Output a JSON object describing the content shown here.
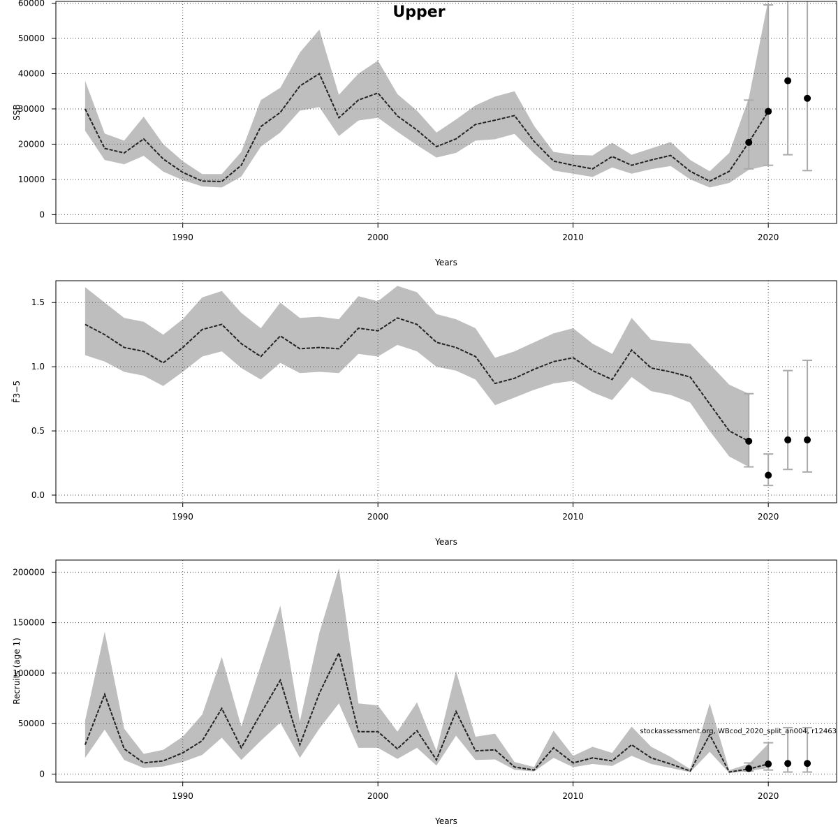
{
  "figure": {
    "title": "Upper",
    "watermark": "stockassessment.org, WBcod_2020_split_an004, r12463",
    "band_color": "#bebebe",
    "line_color": "#222222",
    "grid_color": "#555555",
    "errorbar_color": "#aaaaaa",
    "point_color": "#000000"
  },
  "chart_data": [
    {
      "type": "line",
      "panel": "ssb",
      "ylabel": "SSB",
      "xlabel": "Years",
      "grid": true,
      "xlim": [
        1983.5,
        2023.5
      ],
      "ylim": [
        -2500,
        60500
      ],
      "xticks": [
        1990,
        2000,
        2010,
        2020
      ],
      "yticks": [
        0,
        10000,
        20000,
        30000,
        40000,
        50000,
        60000
      ],
      "ytick_labels": [
        "0",
        "10000",
        "20000",
        "30000",
        "40000",
        "50000",
        "60000"
      ],
      "x": [
        1985,
        1986,
        1987,
        1988,
        1989,
        1990,
        1991,
        1992,
        1993,
        1994,
        1995,
        1996,
        1997,
        1998,
        1999,
        2000,
        2001,
        2002,
        2003,
        2004,
        2005,
        2006,
        2007,
        2008,
        2009,
        2010,
        2011,
        2012,
        2013,
        2014,
        2015,
        2016,
        2017,
        2018,
        2019,
        2020
      ],
      "estimate": [
        30000,
        18800,
        17500,
        21500,
        15800,
        12000,
        9500,
        9400,
        14000,
        25000,
        29000,
        36500,
        40000,
        27500,
        32500,
        34500,
        28000,
        24000,
        19300,
        21500,
        25600,
        26800,
        28100,
        20800,
        15200,
        14000,
        13000,
        16500,
        14000,
        15500,
        16800,
        12300,
        9500,
        12300,
        20500,
        29300
      ],
      "lower": [
        23800,
        15500,
        14300,
        16700,
        12200,
        9800,
        8000,
        7700,
        10800,
        19300,
        23300,
        29500,
        30500,
        22300,
        26700,
        27500,
        23500,
        19700,
        16200,
        17500,
        21000,
        21400,
        22900,
        17300,
        12500,
        11600,
        10700,
        13400,
        11600,
        12900,
        13800,
        10000,
        7700,
        9000,
        12700,
        14000
      ],
      "upper": [
        38000,
        23000,
        21000,
        27800,
        20000,
        15200,
        11500,
        11500,
        17800,
        32500,
        36000,
        46000,
        52500,
        34000,
        40000,
        43700,
        34200,
        29500,
        23300,
        27000,
        31000,
        33500,
        35000,
        25200,
        17800,
        17000,
        16800,
        20400,
        17000,
        18800,
        20600,
        15500,
        12300,
        17500,
        33000,
        61000
      ],
      "points": [
        {
          "x": 2019,
          "y": 20500,
          "lo": 13000,
          "hi": 32500
        },
        {
          "x": 2020,
          "y": 29300,
          "lo": 14000,
          "hi": 59500
        },
        {
          "x": 2021,
          "y": 38000,
          "lo": 17000,
          "hi": 65000
        },
        {
          "x": 2022,
          "y": 33000,
          "lo": 12500,
          "hi": 65000
        }
      ]
    },
    {
      "type": "line",
      "panel": "f",
      "ylabel": "F̄3−5",
      "xlabel": "Years",
      "grid": true,
      "xlim": [
        1983.5,
        2023.5
      ],
      "ylim": [
        -0.06,
        1.67
      ],
      "xticks": [
        1990,
        2000,
        2010,
        2020
      ],
      "yticks": [
        0.0,
        0.5,
        1.0,
        1.5
      ],
      "ytick_labels": [
        "0.0",
        "0.5",
        "1.0",
        "1.5"
      ],
      "x": [
        1985,
        1986,
        1987,
        1988,
        1989,
        1990,
        1991,
        1992,
        1993,
        1994,
        1995,
        1996,
        1997,
        1998,
        1999,
        2000,
        2001,
        2002,
        2003,
        2004,
        2005,
        2006,
        2007,
        2008,
        2009,
        2010,
        2011,
        2012,
        2013,
        2014,
        2015,
        2016,
        2017,
        2018,
        2019
      ],
      "estimate": [
        1.33,
        1.25,
        1.15,
        1.12,
        1.03,
        1.15,
        1.29,
        1.33,
        1.18,
        1.08,
        1.24,
        1.14,
        1.15,
        1.14,
        1.3,
        1.28,
        1.38,
        1.33,
        1.19,
        1.15,
        1.08,
        0.87,
        0.91,
        0.98,
        1.04,
        1.07,
        0.97,
        0.9,
        1.13,
        0.99,
        0.96,
        0.92,
        0.71,
        0.5,
        0.42
      ],
      "lower": [
        1.09,
        1.04,
        0.96,
        0.93,
        0.85,
        0.96,
        1.08,
        1.12,
        0.99,
        0.9,
        1.03,
        0.95,
        0.96,
        0.95,
        1.1,
        1.08,
        1.17,
        1.12,
        1.0,
        0.97,
        0.9,
        0.7,
        0.76,
        0.82,
        0.87,
        0.89,
        0.8,
        0.74,
        0.92,
        0.81,
        0.78,
        0.72,
        0.5,
        0.3,
        0.22
      ],
      "upper": [
        1.62,
        1.5,
        1.38,
        1.35,
        1.25,
        1.37,
        1.54,
        1.59,
        1.42,
        1.3,
        1.5,
        1.38,
        1.39,
        1.37,
        1.55,
        1.51,
        1.63,
        1.58,
        1.41,
        1.37,
        1.3,
        1.07,
        1.12,
        1.19,
        1.26,
        1.3,
        1.18,
        1.1,
        1.38,
        1.21,
        1.19,
        1.18,
        1.02,
        0.86,
        0.79
      ],
      "points": [
        {
          "x": 2019,
          "y": 0.42,
          "lo": 0.22,
          "hi": 0.79
        },
        {
          "x": 2020,
          "y": 0.155,
          "lo": 0.075,
          "hi": 0.32
        },
        {
          "x": 2021,
          "y": 0.43,
          "lo": 0.2,
          "hi": 0.97
        },
        {
          "x": 2022,
          "y": 0.43,
          "lo": 0.18,
          "hi": 1.05
        }
      ]
    },
    {
      "type": "line",
      "panel": "rec",
      "ylabel": "Recruits (age 1)",
      "xlabel": "Years",
      "grid": true,
      "xlim": [
        1983.5,
        2023.5
      ],
      "ylim": [
        -8000,
        212000
      ],
      "xticks": [
        1990,
        2000,
        2010,
        2020
      ],
      "yticks": [
        0,
        50000,
        100000,
        150000,
        200000
      ],
      "ytick_labels": [
        "0",
        "50000",
        "100000",
        "150000",
        "200000"
      ],
      "x": [
        1985,
        1986,
        1987,
        1988,
        1989,
        1990,
        1991,
        1992,
        1993,
        1994,
        1995,
        1996,
        1997,
        1998,
        1999,
        2000,
        2001,
        2002,
        2003,
        2004,
        2005,
        2006,
        2007,
        2008,
        2009,
        2010,
        2011,
        2012,
        2013,
        2014,
        2015,
        2016,
        2017,
        2018,
        2019,
        2020
      ],
      "estimate": [
        29000,
        79000,
        25000,
        11000,
        13000,
        21000,
        33000,
        65000,
        26000,
        60000,
        93000,
        29000,
        80000,
        120000,
        42000,
        42000,
        25000,
        43000,
        14000,
        62000,
        23000,
        24000,
        7000,
        4000,
        26000,
        11000,
        16000,
        13000,
        29000,
        16000,
        10000,
        3000,
        39000,
        2000,
        5000,
        10000
      ],
      "lower": [
        16000,
        44000,
        14000,
        6000,
        7500,
        12000,
        19000,
        36000,
        14000,
        33000,
        51000,
        16000,
        45000,
        70000,
        26000,
        26000,
        15000,
        26000,
        8500,
        38000,
        14000,
        14500,
        4200,
        2500,
        16000,
        6800,
        10000,
        8000,
        18000,
        10000,
        6000,
        1800,
        22000,
        1000,
        3000,
        6000
      ],
      "upper": [
        53000,
        141000,
        45000,
        20000,
        24000,
        37000,
        59000,
        116000,
        47000,
        108000,
        167000,
        52000,
        140000,
        204000,
        70000,
        68000,
        42000,
        71000,
        23000,
        102000,
        37000,
        40000,
        12000,
        7000,
        43000,
        18000,
        27000,
        21000,
        47000,
        27000,
        17000,
        5000,
        70000,
        4000,
        10000,
        30000
      ],
      "points": [
        {
          "x": 2019,
          "y": 5500,
          "lo": 3000,
          "hi": 11000
        },
        {
          "x": 2020,
          "y": 10000,
          "lo": 4000,
          "hi": 31000
        },
        {
          "x": 2021,
          "y": 10500,
          "lo": 2000,
          "hi": 46000
        },
        {
          "x": 2022,
          "y": 10500,
          "lo": 2000,
          "hi": 46000
        }
      ]
    }
  ]
}
